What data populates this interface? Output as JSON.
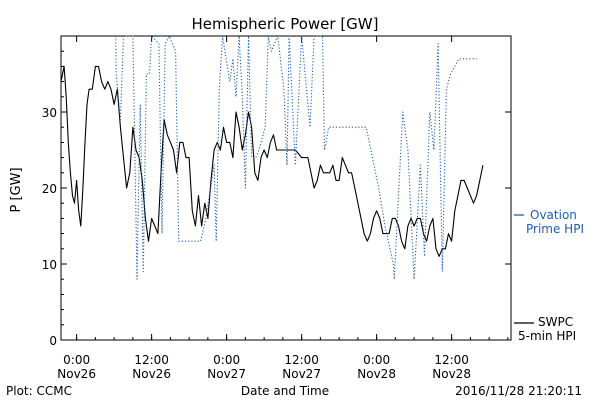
{
  "chart_data": {
    "type": "line",
    "title": "Hemispheric Power [GW]",
    "ylabel": "P [GW]",
    "xlabel": "Date and Time",
    "xlim": [
      "2016-11-25T21:30",
      "2016-11-28T21:30"
    ],
    "ylim": [
      0,
      40
    ],
    "y_ticks": [
      "0",
      "10",
      "20",
      "30"
    ],
    "y_tick_values": [
      0,
      10,
      20,
      30
    ],
    "x_ticks": [
      {
        "time": "2016-11-26T00:00",
        "line1": "0:00",
        "line2": "Nov26"
      },
      {
        "time": "2016-11-26T12:00",
        "line1": "12:00",
        "line2": "Nov26"
      },
      {
        "time": "2016-11-27T00:00",
        "line1": "0:00",
        "line2": "Nov27"
      },
      {
        "time": "2016-11-27T12:00",
        "line1": "12:00",
        "line2": "Nov27"
      },
      {
        "time": "2016-11-28T00:00",
        "line1": "0:00",
        "line2": "Nov28"
      },
      {
        "time": "2016-11-28T12:00",
        "line1": "12:00",
        "line2": "Nov28"
      }
    ],
    "footer_left": "Plot: CCMC",
    "footer_right": "2016/11/28 21:20:11",
    "legend_placement": "right",
    "series": [
      {
        "name": "SWPC 5-min HPI",
        "legend_lines": [
          "SWPC",
          "5-min HPI"
        ],
        "style": "solid",
        "color": "#000000",
        "points": [
          [
            "2016-11-25T21:30",
            34
          ],
          [
            "2016-11-25T22:00",
            36
          ],
          [
            "2016-11-25T22:20",
            32
          ],
          [
            "2016-11-25T22:40",
            26
          ],
          [
            "2016-11-25T23:00",
            22
          ],
          [
            "2016-11-25T23:20",
            19
          ],
          [
            "2016-11-25T23:40",
            18
          ],
          [
            "2016-11-26T00:00",
            21
          ],
          [
            "2016-11-26T00:20",
            17
          ],
          [
            "2016-11-26T00:40",
            15
          ],
          [
            "2016-11-26T01:00",
            20
          ],
          [
            "2016-11-26T01:20",
            26
          ],
          [
            "2016-11-26T01:40",
            31
          ],
          [
            "2016-11-26T02:00",
            33
          ],
          [
            "2016-11-26T02:30",
            33
          ],
          [
            "2016-11-26T03:00",
            36
          ],
          [
            "2016-11-26T03:30",
            36
          ],
          [
            "2016-11-26T04:00",
            34
          ],
          [
            "2016-11-26T04:30",
            33
          ],
          [
            "2016-11-26T05:00",
            34
          ],
          [
            "2016-11-26T05:30",
            33
          ],
          [
            "2016-11-26T06:00",
            31
          ],
          [
            "2016-11-26T06:30",
            33
          ],
          [
            "2016-11-26T07:00",
            28
          ],
          [
            "2016-11-26T07:30",
            24
          ],
          [
            "2016-11-26T08:00",
            20
          ],
          [
            "2016-11-26T08:30",
            22
          ],
          [
            "2016-11-26T09:00",
            28
          ],
          [
            "2016-11-26T09:30",
            25
          ],
          [
            "2016-11-26T10:00",
            24
          ],
          [
            "2016-11-26T10:30",
            21
          ],
          [
            "2016-11-26T11:00",
            16
          ],
          [
            "2016-11-26T11:30",
            13
          ],
          [
            "2016-11-26T12:00",
            16
          ],
          [
            "2016-11-26T12:30",
            15
          ],
          [
            "2016-11-26T13:00",
            14
          ],
          [
            "2016-11-26T13:30",
            22
          ],
          [
            "2016-11-26T14:00",
            29
          ],
          [
            "2016-11-26T14:30",
            27
          ],
          [
            "2016-11-26T15:00",
            26
          ],
          [
            "2016-11-26T15:30",
            25
          ],
          [
            "2016-11-26T16:00",
            22
          ],
          [
            "2016-11-26T16:30",
            26
          ],
          [
            "2016-11-26T17:00",
            26
          ],
          [
            "2016-11-26T17:30",
            24
          ],
          [
            "2016-11-26T18:00",
            24
          ],
          [
            "2016-11-26T18:30",
            17
          ],
          [
            "2016-11-26T19:00",
            15
          ],
          [
            "2016-11-26T19:30",
            19
          ],
          [
            "2016-11-26T20:00",
            15
          ],
          [
            "2016-11-26T20:30",
            18
          ],
          [
            "2016-11-26T21:00",
            16
          ],
          [
            "2016-11-26T21:30",
            21
          ],
          [
            "2016-11-26T22:00",
            25
          ],
          [
            "2016-11-26T22:30",
            26
          ],
          [
            "2016-11-26T23:00",
            25
          ],
          [
            "2016-11-26T23:30",
            28
          ],
          [
            "2016-11-27T00:00",
            26
          ],
          [
            "2016-11-27T00:30",
            26
          ],
          [
            "2016-11-27T01:00",
            24
          ],
          [
            "2016-11-27T01:30",
            30
          ],
          [
            "2016-11-27T02:00",
            28
          ],
          [
            "2016-11-27T02:30",
            25
          ],
          [
            "2016-11-27T03:00",
            27
          ],
          [
            "2016-11-27T03:30",
            30
          ],
          [
            "2016-11-27T04:00",
            28
          ],
          [
            "2016-11-27T04:30",
            22
          ],
          [
            "2016-11-27T05:00",
            21
          ],
          [
            "2016-11-27T05:30",
            24
          ],
          [
            "2016-11-27T06:00",
            25
          ],
          [
            "2016-11-27T06:30",
            24
          ],
          [
            "2016-11-27T07:00",
            26
          ],
          [
            "2016-11-27T07:30",
            27
          ],
          [
            "2016-11-27T08:00",
            25
          ],
          [
            "2016-11-27T09:00",
            25
          ],
          [
            "2016-11-27T10:00",
            25
          ],
          [
            "2016-11-27T11:00",
            25
          ],
          [
            "2016-11-27T12:00",
            24
          ],
          [
            "2016-11-27T13:00",
            24
          ],
          [
            "2016-11-27T13:30",
            22
          ],
          [
            "2016-11-27T14:00",
            20
          ],
          [
            "2016-11-27T14:30",
            21
          ],
          [
            "2016-11-27T15:00",
            23
          ],
          [
            "2016-11-27T15:30",
            22
          ],
          [
            "2016-11-27T16:00",
            22
          ],
          [
            "2016-11-27T16:30",
            22
          ],
          [
            "2016-11-27T17:00",
            23
          ],
          [
            "2016-11-27T17:30",
            21
          ],
          [
            "2016-11-27T18:00",
            21
          ],
          [
            "2016-11-27T18:30",
            24
          ],
          [
            "2016-11-27T19:00",
            23
          ],
          [
            "2016-11-27T19:30",
            22
          ],
          [
            "2016-11-27T20:00",
            22
          ],
          [
            "2016-11-27T20:30",
            20
          ],
          [
            "2016-11-27T21:00",
            18
          ],
          [
            "2016-11-27T21:30",
            16
          ],
          [
            "2016-11-27T22:00",
            14
          ],
          [
            "2016-11-27T22:30",
            13
          ],
          [
            "2016-11-27T23:00",
            14
          ],
          [
            "2016-11-27T23:30",
            16
          ],
          [
            "2016-11-28T00:00",
            17
          ],
          [
            "2016-11-28T00:30",
            16
          ],
          [
            "2016-11-28T01:00",
            14
          ],
          [
            "2016-11-28T01:30",
            14
          ],
          [
            "2016-11-28T02:00",
            14
          ],
          [
            "2016-11-28T02:30",
            16
          ],
          [
            "2016-11-28T03:00",
            16
          ],
          [
            "2016-11-28T03:30",
            15
          ],
          [
            "2016-11-28T04:00",
            13
          ],
          [
            "2016-11-28T04:30",
            12
          ],
          [
            "2016-11-28T05:00",
            15
          ],
          [
            "2016-11-28T05:30",
            16
          ],
          [
            "2016-11-28T06:00",
            15
          ],
          [
            "2016-11-28T06:30",
            16
          ],
          [
            "2016-11-28T07:00",
            16
          ],
          [
            "2016-11-28T07:30",
            14
          ],
          [
            "2016-11-28T08:00",
            13
          ],
          [
            "2016-11-28T08:30",
            15
          ],
          [
            "2016-11-28T09:00",
            16
          ],
          [
            "2016-11-28T09:30",
            12
          ],
          [
            "2016-11-28T10:00",
            11
          ],
          [
            "2016-11-28T10:30",
            12
          ],
          [
            "2016-11-28T11:00",
            12
          ],
          [
            "2016-11-28T11:30",
            14
          ],
          [
            "2016-11-28T12:00",
            13
          ],
          [
            "2016-11-28T12:30",
            17
          ],
          [
            "2016-11-28T13:00",
            19
          ],
          [
            "2016-11-28T13:30",
            21
          ],
          [
            "2016-11-28T14:00",
            21
          ],
          [
            "2016-11-28T14:30",
            20
          ],
          [
            "2016-11-28T15:00",
            19
          ],
          [
            "2016-11-28T15:30",
            18
          ],
          [
            "2016-11-28T16:00",
            19
          ],
          [
            "2016-11-28T16:30",
            21
          ],
          [
            "2016-11-28T17:00",
            23
          ]
        ]
      },
      {
        "name": "Ovation Prime HPI",
        "legend_lines": [
          "Ovation",
          "Prime HPI"
        ],
        "style": "dotted",
        "color": "#1f5fb4",
        "points": [
          [
            "2016-11-26T06:15",
            40
          ],
          [
            "2016-11-26T06:20",
            35
          ],
          [
            "2016-11-26T07:00",
            29
          ],
          [
            "2016-11-26T07:30",
            40
          ],
          [
            "2016-11-26T09:00",
            40
          ],
          [
            "2016-11-26T09:40",
            8
          ],
          [
            "2016-11-26T10:10",
            31
          ],
          [
            "2016-11-26T10:40",
            9
          ],
          [
            "2016-11-26T11:10",
            35
          ],
          [
            "2016-11-26T11:40",
            35
          ],
          [
            "2016-11-26T12:00",
            40
          ],
          [
            "2016-11-26T13:10",
            39
          ],
          [
            "2016-11-26T13:40",
            14
          ],
          [
            "2016-11-26T14:10",
            39
          ],
          [
            "2016-11-26T14:50",
            40
          ],
          [
            "2016-11-26T15:50",
            38
          ],
          [
            "2016-11-26T16:20",
            13
          ],
          [
            "2016-11-26T19:50",
            13
          ],
          [
            "2016-11-26T20:40",
            16
          ],
          [
            "2016-11-26T22:00",
            23
          ],
          [
            "2016-11-26T22:20",
            13
          ],
          [
            "2016-11-26T22:50",
            33
          ],
          [
            "2016-11-26T23:20",
            40
          ],
          [
            "2016-11-27T00:30",
            34
          ],
          [
            "2016-11-27T01:00",
            37
          ],
          [
            "2016-11-27T01:30",
            32
          ],
          [
            "2016-11-27T02:00",
            40
          ],
          [
            "2016-11-27T02:30",
            32
          ],
          [
            "2016-11-27T03:00",
            20
          ],
          [
            "2016-11-27T03:30",
            40
          ],
          [
            "2016-11-27T04:00",
            24
          ],
          [
            "2016-11-27T04:40",
            24
          ],
          [
            "2016-11-27T05:10",
            25
          ],
          [
            "2016-11-27T06:10",
            28
          ],
          [
            "2016-11-27T06:40",
            40
          ],
          [
            "2016-11-27T07:10",
            38
          ],
          [
            "2016-11-27T08:10",
            40
          ],
          [
            "2016-11-27T09:10",
            33
          ],
          [
            "2016-11-27T09:40",
            23
          ],
          [
            "2016-11-27T10:00",
            40
          ],
          [
            "2016-11-27T11:00",
            23
          ],
          [
            "2016-11-27T12:00",
            40
          ],
          [
            "2016-11-27T13:20",
            28
          ],
          [
            "2016-11-27T14:00",
            40
          ],
          [
            "2016-11-27T15:20",
            40
          ],
          [
            "2016-11-27T15:40",
            25
          ],
          [
            "2016-11-27T16:20",
            28
          ],
          [
            "2016-11-27T17:00",
            28
          ],
          [
            "2016-11-27T18:20",
            28
          ],
          [
            "2016-11-27T19:00",
            28
          ],
          [
            "2016-11-27T20:20",
            28
          ],
          [
            "2016-11-27T21:20",
            28
          ],
          [
            "2016-11-27T22:20",
            28
          ],
          [
            "2016-11-28T00:20",
            20
          ],
          [
            "2016-11-28T01:20",
            15
          ],
          [
            "2016-11-28T02:40",
            10
          ],
          [
            "2016-11-28T02:50",
            8
          ],
          [
            "2016-11-28T04:10",
            30
          ],
          [
            "2016-11-28T05:00",
            25
          ],
          [
            "2016-11-28T06:00",
            8
          ],
          [
            "2016-11-28T07:00",
            23
          ],
          [
            "2016-11-28T07:40",
            11
          ],
          [
            "2016-11-28T08:30",
            30
          ],
          [
            "2016-11-28T09:10",
            25
          ],
          [
            "2016-11-28T09:50",
            39
          ],
          [
            "2016-11-28T10:30",
            9
          ],
          [
            "2016-11-28T11:10",
            33
          ],
          [
            "2016-11-28T11:50",
            35
          ],
          [
            "2016-11-28T12:30",
            36
          ],
          [
            "2016-11-28T13:10",
            37
          ],
          [
            "2016-11-28T16:00",
            37
          ]
        ]
      }
    ]
  }
}
